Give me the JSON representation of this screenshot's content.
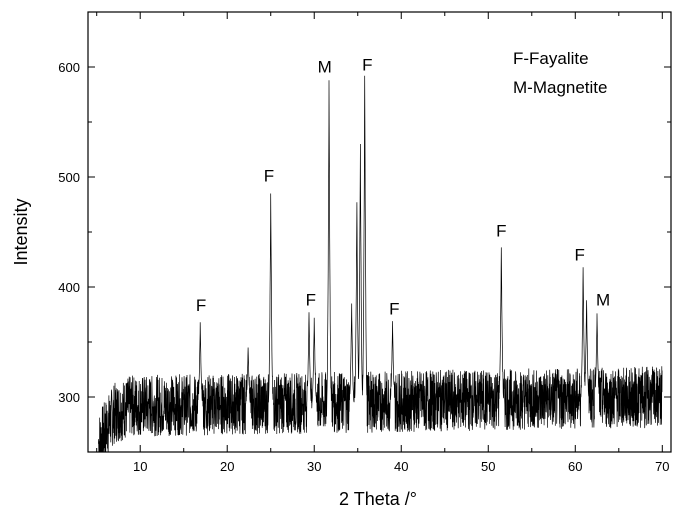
{
  "chart_data": {
    "type": "line",
    "title": "",
    "xlabel": "2 Theta /°",
    "ylabel": "Intensity",
    "xlim": [
      4,
      71
    ],
    "ylim": [
      250,
      650
    ],
    "x_ticks": [
      10,
      20,
      30,
      40,
      50,
      60,
      70
    ],
    "x_tick_labels": [
      "10",
      "20",
      "30",
      "40",
      "50",
      "60",
      "70"
    ],
    "y_ticks": [
      300,
      400,
      500,
      600
    ],
    "y_tick_labels": [
      "300",
      "400",
      "500",
      "600"
    ],
    "grid": false,
    "legend_position": "top-right",
    "legend": [
      "F-Fayalite",
      "M-Magnetite"
    ],
    "line_color": "#000000",
    "series": [
      {
        "noise_band": {
          "x_start": 5.2,
          "x_end": 70,
          "baseline": [
            [
              5.2,
              258
            ],
            [
              6,
              270
            ],
            [
              7,
              285
            ],
            [
              9,
              292
            ],
            [
              70,
              300
            ]
          ],
          "spread": 28
        },
        "peaks": [
          {
            "x": 16.9,
            "y": 368
          },
          {
            "x": 22.4,
            "y": 345
          },
          {
            "x": 25.0,
            "y": 485
          },
          {
            "x": 29.4,
            "y": 377
          },
          {
            "x": 30.0,
            "y": 372
          },
          {
            "x": 31.7,
            "y": 588
          },
          {
            "x": 34.3,
            "y": 385
          },
          {
            "x": 34.9,
            "y": 477
          },
          {
            "x": 35.3,
            "y": 530
          },
          {
            "x": 35.8,
            "y": 592
          },
          {
            "x": 39.0,
            "y": 369
          },
          {
            "x": 51.5,
            "y": 436
          },
          {
            "x": 60.9,
            "y": 418
          },
          {
            "x": 61.3,
            "y": 388
          },
          {
            "x": 62.5,
            "y": 376
          }
        ]
      }
    ],
    "annotations": [
      {
        "text": "F",
        "x": 17.0,
        "y": 378
      },
      {
        "text": "F",
        "x": 24.8,
        "y": 496
      },
      {
        "text": "M",
        "x": 31.2,
        "y": 595
      },
      {
        "text": "F",
        "x": 29.6,
        "y": 383
      },
      {
        "text": "F",
        "x": 36.1,
        "y": 597
      },
      {
        "text": "F",
        "x": 39.2,
        "y": 375
      },
      {
        "text": "F",
        "x": 51.5,
        "y": 446
      },
      {
        "text": "F",
        "x": 60.5,
        "y": 424
      },
      {
        "text": "M",
        "x": 63.2,
        "y": 383
      }
    ]
  }
}
